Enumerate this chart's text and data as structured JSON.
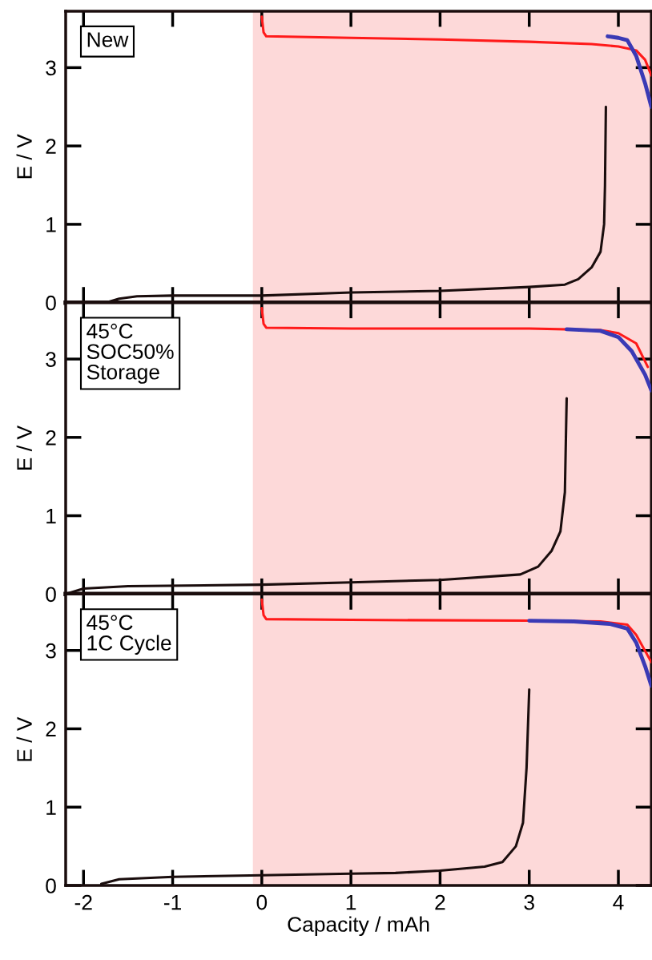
{
  "chart_data": [
    {
      "type": "line",
      "ylabel": "E / V",
      "annotations": [
        "New"
      ],
      "xlim": [
        -2.2,
        4.37
      ],
      "ylim": [
        0,
        3.72
      ],
      "xticks": [
        -2,
        -1,
        0,
        1,
        2,
        3,
        4
      ],
      "yticks": [
        0,
        1,
        2,
        3
      ],
      "tick_labels": "y",
      "grid": false,
      "legend": false,
      "bands": [
        {
          "axis": "x",
          "from": -0.1,
          "to": 4.37,
          "color": "#fdd9d9"
        }
      ],
      "series": [
        {
          "color": "#1a0d0d",
          "x": [
            -2.2,
            -1.75,
            -1.6,
            -1.4,
            -1,
            0,
            1,
            2,
            3,
            3.4,
            3.55,
            3.7,
            3.8,
            3.84,
            3.85,
            3.86
          ],
          "values": [
            0,
            0,
            0.05,
            0.08,
            0.09,
            0.09,
            0.13,
            0.15,
            0.2,
            0.23,
            0.3,
            0.45,
            0.65,
            1.0,
            1.5,
            2.5
          ]
        },
        {
          "color": "#ff1a1a",
          "x": [
            0,
            0.02,
            0.05,
            1,
            2,
            3,
            3.7,
            4.0,
            4.2,
            4.3,
            4.37
          ],
          "values": [
            3.65,
            3.45,
            3.4,
            3.38,
            3.36,
            3.33,
            3.3,
            3.27,
            3.22,
            3.1,
            2.9
          ]
        },
        {
          "color": "#3a3ab5",
          "x": [
            3.88,
            4.0,
            4.1,
            4.2,
            4.3,
            4.37
          ],
          "values": [
            3.4,
            3.38,
            3.35,
            3.15,
            2.8,
            2.5
          ]
        }
      ]
    },
    {
      "type": "line",
      "ylabel": "E / V",
      "annotations": [
        "45°C\nSOC50%\nStorage"
      ],
      "xlim": [
        -2.2,
        4.37
      ],
      "ylim": [
        0,
        3.72
      ],
      "xticks": [
        -2,
        -1,
        0,
        1,
        2,
        3,
        4
      ],
      "yticks": [
        0,
        1,
        2,
        3
      ],
      "tick_labels": "y",
      "grid": false,
      "legend": false,
      "bands": [
        {
          "axis": "x",
          "from": -0.1,
          "to": 4.37,
          "color": "#fdd9d9"
        }
      ],
      "series": [
        {
          "color": "#1a0d0d",
          "x": [
            -2.2,
            -2.0,
            -1.5,
            0,
            1,
            2,
            2.9,
            3.1,
            3.25,
            3.35,
            3.4,
            3.42
          ],
          "values": [
            0.0,
            0.07,
            0.1,
            0.12,
            0.15,
            0.18,
            0.25,
            0.35,
            0.55,
            0.8,
            1.3,
            2.5
          ]
        },
        {
          "color": "#ff1a1a",
          "x": [
            0,
            0.02,
            0.05,
            1,
            2,
            3,
            3.8,
            4.0,
            4.2,
            4.33
          ],
          "values": [
            3.65,
            3.45,
            3.4,
            3.39,
            3.39,
            3.39,
            3.37,
            3.33,
            3.2,
            2.9
          ]
        },
        {
          "color": "#3a3ab5",
          "x": [
            3.42,
            3.8,
            4.0,
            4.15,
            4.3,
            4.37
          ],
          "values": [
            3.38,
            3.36,
            3.28,
            3.1,
            2.8,
            2.6
          ]
        }
      ]
    },
    {
      "type": "line",
      "ylabel": "E / V",
      "xlabel": "Capacity / mAh",
      "annotations": [
        "45°C\n1C Cycle"
      ],
      "xlim": [
        -2.2,
        4.37
      ],
      "ylim": [
        0,
        3.72
      ],
      "xticks": [
        -2,
        -1,
        0,
        1,
        2,
        3,
        4
      ],
      "yticks": [
        0,
        1,
        2,
        3
      ],
      "grid": false,
      "legend": false,
      "bands": [
        {
          "axis": "x",
          "from": -0.1,
          "to": 4.37,
          "color": "#fdd9d9"
        }
      ],
      "series": [
        {
          "color": "#1a0d0d",
          "x": [
            -1.8,
            -1.6,
            -1,
            0,
            1,
            1.5,
            2,
            2.5,
            2.7,
            2.85,
            2.93,
            2.97,
            3.0
          ],
          "values": [
            0.02,
            0.08,
            0.11,
            0.13,
            0.15,
            0.16,
            0.19,
            0.24,
            0.3,
            0.5,
            0.8,
            1.5,
            2.5
          ]
        },
        {
          "color": "#ff1a1a",
          "x": [
            0,
            0.02,
            0.05,
            1,
            3,
            3.8,
            4.1,
            4.2,
            4.37
          ],
          "values": [
            3.65,
            3.45,
            3.4,
            3.39,
            3.38,
            3.37,
            3.33,
            3.2,
            2.85
          ]
        },
        {
          "color": "#3a3ab5",
          "x": [
            3.0,
            3.5,
            3.9,
            4.1,
            4.2,
            4.3,
            4.37
          ],
          "values": [
            3.38,
            3.37,
            3.34,
            3.28,
            3.1,
            2.8,
            2.55
          ]
        }
      ]
    }
  ]
}
